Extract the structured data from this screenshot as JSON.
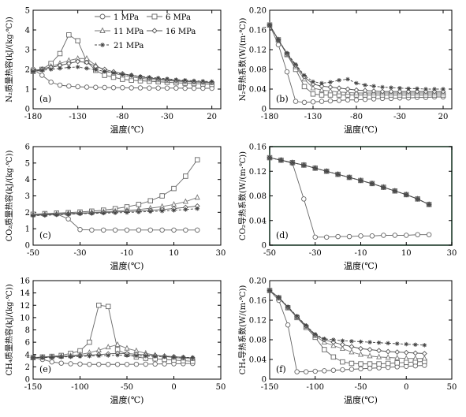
{
  "chart_data": [
    {
      "type": "line",
      "panel": "(a)",
      "ylabel": "N₂质量热容(kJ/(kg·℃))",
      "xlabel": "温度(℃)",
      "xlim": [
        -180,
        30
      ],
      "ylim": [
        0,
        5
      ],
      "xticks": [
        "-180",
        "-130",
        "-80",
        "-30",
        "20"
      ],
      "yticks": [
        "0",
        "1",
        "2",
        "3",
        "4",
        "5"
      ],
      "legend_position": "top",
      "legend_entries": [
        "1 MPa",
        "6 MPa",
        "11 MPa",
        "16 MPa",
        "21 MPa"
      ],
      "x": [
        -180,
        -170,
        -160,
        -150,
        -140,
        -130,
        -120,
        -110,
        -100,
        -90,
        -80,
        -70,
        -60,
        -50,
        -40,
        -30,
        -20,
        -10,
        0,
        10,
        20
      ],
      "series": [
        {
          "name": "1 MPa",
          "marker": "circle",
          "values": [
            2.0,
            1.7,
            1.35,
            1.2,
            1.15,
            1.12,
            1.1,
            1.09,
            1.08,
            1.07,
            1.07,
            1.06,
            1.06,
            1.05,
            1.05,
            1.05,
            1.05,
            1.04,
            1.04,
            1.04,
            1.04
          ]
        },
        {
          "name": "6 MPa",
          "marker": "square",
          "values": [
            1.9,
            2.0,
            2.3,
            2.8,
            3.75,
            3.45,
            2.4,
            1.95,
            1.7,
            1.6,
            1.5,
            1.45,
            1.42,
            1.4,
            1.37,
            1.35,
            1.32,
            1.3,
            1.28,
            1.26,
            1.24
          ]
        },
        {
          "name": "11 MPa",
          "marker": "triangle",
          "values": [
            1.9,
            2.0,
            2.15,
            2.3,
            2.45,
            2.55,
            2.55,
            2.2,
            1.95,
            1.8,
            1.7,
            1.62,
            1.55,
            1.5,
            1.46,
            1.43,
            1.4,
            1.38,
            1.36,
            1.34,
            1.32
          ]
        },
        {
          "name": "16 MPa",
          "marker": "diamond",
          "values": [
            1.95,
            2.0,
            2.1,
            2.2,
            2.3,
            2.4,
            2.35,
            2.15,
            2.0,
            1.88,
            1.78,
            1.7,
            1.62,
            1.56,
            1.52,
            1.48,
            1.44,
            1.41,
            1.38,
            1.36,
            1.34
          ]
        },
        {
          "name": "21 MPa",
          "marker": "star",
          "values": [
            1.9,
            1.95,
            2.0,
            2.05,
            2.1,
            2.12,
            2.05,
            1.98,
            1.9,
            1.82,
            1.75,
            1.7,
            1.64,
            1.6,
            1.56,
            1.52,
            1.48,
            1.45,
            1.42,
            1.4,
            1.38
          ]
        }
      ]
    },
    {
      "type": "line",
      "panel": "(b)",
      "ylabel": "N₂导热系数(W/(m·℃))",
      "xlabel": "温度(℃)",
      "xlim": [
        -180,
        30
      ],
      "ylim": [
        0,
        0.2
      ],
      "xticks": [
        "-180",
        "-130",
        "-80",
        "-30",
        "20"
      ],
      "yticks": [
        "0",
        "0.04",
        "0.08",
        "0.12",
        "0.16",
        "0.20"
      ],
      "x": [
        -180,
        -170,
        -160,
        -150,
        -140,
        -130,
        -120,
        -110,
        -100,
        -90,
        -80,
        -70,
        -60,
        -50,
        -40,
        -30,
        -20,
        -10,
        0,
        10,
        20
      ],
      "series": [
        {
          "name": "1 MPa",
          "marker": "circle",
          "values": [
            0.17,
            0.13,
            0.075,
            0.015,
            0.013,
            0.014,
            0.015,
            0.016,
            0.017,
            0.018,
            0.018,
            0.019,
            0.02,
            0.021,
            0.021,
            0.022,
            0.022,
            0.023,
            0.023,
            0.024,
            0.024
          ]
        },
        {
          "name": "6 MPa",
          "marker": "square",
          "values": [
            0.17,
            0.14,
            0.11,
            0.08,
            0.045,
            0.03,
            0.028,
            0.028,
            0.028,
            0.028,
            0.028,
            0.028,
            0.028,
            0.028,
            0.028,
            0.028,
            0.028,
            0.028,
            0.028,
            0.028,
            0.028
          ]
        },
        {
          "name": "11 MPa",
          "marker": "triangle",
          "values": [
            0.17,
            0.14,
            0.11,
            0.085,
            0.06,
            0.042,
            0.038,
            0.036,
            0.034,
            0.033,
            0.032,
            0.032,
            0.032,
            0.032,
            0.032,
            0.032,
            0.032,
            0.032,
            0.032,
            0.032,
            0.032
          ]
        },
        {
          "name": "16 MPa",
          "marker": "diamond",
          "values": [
            0.17,
            0.14,
            0.112,
            0.088,
            0.065,
            0.05,
            0.046,
            0.044,
            0.042,
            0.04,
            0.038,
            0.037,
            0.036,
            0.035,
            0.035,
            0.035,
            0.035,
            0.035,
            0.035,
            0.035,
            0.035
          ]
        },
        {
          "name": "21 MPa",
          "marker": "star",
          "values": [
            0.17,
            0.14,
            0.113,
            0.09,
            0.068,
            0.055,
            0.052,
            0.054,
            0.058,
            0.06,
            0.052,
            0.048,
            0.046,
            0.044,
            0.043,
            0.042,
            0.041,
            0.041,
            0.04,
            0.04,
            0.04
          ]
        }
      ]
    },
    {
      "type": "line",
      "panel": "(c)",
      "ylabel": "CO₂质量热容(kJ/(kg·℃))",
      "xlabel": "温度(℃)",
      "xlim": [
        -50,
        30
      ],
      "ylim": [
        0,
        6
      ],
      "xticks": [
        "-50",
        "-30",
        "-10",
        "10",
        "30"
      ],
      "yticks": [
        "0",
        "1",
        "2",
        "3",
        "4",
        "5",
        "6"
      ],
      "x": [
        -50,
        -45,
        -40,
        -35,
        -30,
        -25,
        -20,
        -15,
        -10,
        -5,
        0,
        5,
        10,
        15,
        20
      ],
      "series": [
        {
          "name": "1 MPa",
          "marker": "circle",
          "values": [
            1.85,
            1.88,
            1.9,
            1.6,
            0.95,
            0.92,
            0.92,
            0.92,
            0.92,
            0.92,
            0.92,
            0.92,
            0.92,
            0.92,
            0.92
          ]
        },
        {
          "name": "6 MPa",
          "marker": "square",
          "values": [
            1.88,
            1.92,
            1.95,
            1.98,
            2.02,
            2.07,
            2.13,
            2.22,
            2.33,
            2.48,
            2.7,
            3.0,
            3.45,
            4.2,
            5.2
          ]
        },
        {
          "name": "11 MPa",
          "marker": "triangle",
          "values": [
            1.85,
            1.88,
            1.9,
            1.93,
            1.96,
            1.99,
            2.03,
            2.07,
            2.12,
            2.17,
            2.25,
            2.35,
            2.48,
            2.65,
            2.9
          ]
        },
        {
          "name": "16 MPa",
          "marker": "diamond",
          "values": [
            1.82,
            1.84,
            1.87,
            1.9,
            1.93,
            1.96,
            1.99,
            2.02,
            2.05,
            2.08,
            2.12,
            2.17,
            2.23,
            2.3,
            2.38
          ]
        },
        {
          "name": "21 MPa",
          "marker": "star",
          "values": [
            1.8,
            1.82,
            1.85,
            1.88,
            1.91,
            1.93,
            1.95,
            1.97,
            1.99,
            2.02,
            2.05,
            2.08,
            2.12,
            2.17,
            2.22
          ]
        }
      ]
    },
    {
      "type": "line",
      "panel": "(d)",
      "ylabel": "CO₂导热系数(W/(m·℃))",
      "xlabel": "温度(℃)",
      "xlim": [
        -50,
        30
      ],
      "ylim": [
        0,
        0.16
      ],
      "xticks": [
        "-50",
        "-30",
        "-10",
        "10",
        "30"
      ],
      "yticks": [
        "0",
        "0.04",
        "0.08",
        "0.12",
        "0.16"
      ],
      "x": [
        -50,
        -45,
        -40,
        -35,
        -30,
        -25,
        -20,
        -15,
        -10,
        -5,
        0,
        5,
        10,
        15,
        20
      ],
      "series": [
        {
          "name": "1 MPa",
          "marker": "circle",
          "values": [
            0.142,
            0.138,
            0.133,
            0.075,
            0.013,
            0.013,
            0.014,
            0.014,
            0.015,
            0.015,
            0.016,
            0.016,
            0.016,
            0.017,
            0.017
          ]
        },
        {
          "name": "6 MPa",
          "marker": "square",
          "values": [
            0.142,
            0.138,
            0.134,
            0.13,
            0.125,
            0.12,
            0.115,
            0.11,
            0.105,
            0.1,
            0.094,
            0.088,
            0.082,
            0.075,
            0.066
          ]
        },
        {
          "name": "11 MPa",
          "marker": "triangle",
          "values": [
            0.142,
            0.138,
            0.134,
            0.13,
            0.125,
            0.12,
            0.115,
            0.11,
            0.105,
            0.1,
            0.094,
            0.088,
            0.082,
            0.075,
            0.066
          ]
        },
        {
          "name": "16 MPa",
          "marker": "diamond",
          "values": [
            0.142,
            0.138,
            0.134,
            0.13,
            0.125,
            0.12,
            0.115,
            0.11,
            0.105,
            0.1,
            0.094,
            0.088,
            0.082,
            0.075,
            0.066
          ]
        },
        {
          "name": "21 MPa",
          "marker": "star",
          "values": [
            0.142,
            0.138,
            0.134,
            0.13,
            0.125,
            0.12,
            0.115,
            0.11,
            0.105,
            0.1,
            0.094,
            0.088,
            0.082,
            0.075,
            0.066
          ]
        }
      ]
    },
    {
      "type": "line",
      "panel": "(e)",
      "ylabel": "CH₄质量热容(kJ/(kg·℃))",
      "xlabel": "温度(℃)",
      "xlim": [
        -150,
        50
      ],
      "ylim": [
        0,
        16
      ],
      "xticks": [
        "-150",
        "-100",
        "-50",
        "0",
        "50"
      ],
      "yticks": [
        "0",
        "2",
        "4",
        "6",
        "8",
        "10",
        "12",
        "14",
        "16"
      ],
      "x": [
        -150,
        -140,
        -130,
        -120,
        -110,
        -100,
        -90,
        -80,
        -70,
        -60,
        -50,
        -40,
        -30,
        -20,
        -10,
        0,
        10,
        20
      ],
      "series": [
        {
          "name": "1 MPa",
          "marker": "circle",
          "values": [
            3.5,
            3.2,
            2.8,
            2.6,
            2.5,
            2.45,
            2.4,
            2.4,
            2.4,
            2.4,
            2.4,
            2.42,
            2.44,
            2.46,
            2.48,
            2.5,
            2.52,
            2.55
          ]
        },
        {
          "name": "6 MPa",
          "marker": "square",
          "values": [
            3.5,
            3.6,
            3.7,
            3.85,
            4.2,
            4.6,
            6.0,
            12.0,
            11.8,
            4.8,
            4.0,
            3.6,
            3.4,
            3.3,
            3.2,
            3.1,
            3.0,
            2.9
          ]
        },
        {
          "name": "11 MPa",
          "marker": "triangle",
          "values": [
            3.5,
            3.55,
            3.6,
            3.7,
            3.8,
            4.0,
            4.3,
            4.7,
            5.2,
            5.6,
            5.0,
            4.6,
            4.2,
            3.9,
            3.7,
            3.5,
            3.4,
            3.3
          ]
        },
        {
          "name": "16 MPa",
          "marker": "diamond",
          "values": [
            3.5,
            3.55,
            3.6,
            3.65,
            3.7,
            3.8,
            3.9,
            4.0,
            4.1,
            4.2,
            4.15,
            4.05,
            3.95,
            3.85,
            3.75,
            3.65,
            3.55,
            3.45
          ]
        },
        {
          "name": "21 MPa",
          "marker": "star",
          "values": [
            3.5,
            3.5,
            3.55,
            3.6,
            3.65,
            3.7,
            3.75,
            3.8,
            3.85,
            3.9,
            3.85,
            3.8,
            3.75,
            3.7,
            3.65,
            3.6,
            3.55,
            3.5
          ]
        }
      ]
    },
    {
      "type": "line",
      "panel": "(f)",
      "ylabel": "CH₄导热系数(W/(m·℃))",
      "xlabel": "温度(℃)",
      "xlim": [
        -150,
        50
      ],
      "ylim": [
        0,
        0.2
      ],
      "xticks": [
        "-150",
        "-100",
        "-50",
        "0",
        "50"
      ],
      "yticks": [
        "0",
        "0.04",
        "0.08",
        "0.12",
        "0.16",
        "0.20"
      ],
      "x": [
        -150,
        -140,
        -130,
        -120,
        -110,
        -100,
        -90,
        -80,
        -70,
        -60,
        -50,
        -40,
        -30,
        -20,
        -10,
        0,
        10,
        20
      ],
      "series": [
        {
          "name": "1 MPa",
          "marker": "circle",
          "values": [
            0.18,
            0.16,
            0.11,
            0.015,
            0.015,
            0.016,
            0.017,
            0.018,
            0.019,
            0.02,
            0.021,
            0.022,
            0.023,
            0.024,
            0.025,
            0.026,
            0.027,
            0.028
          ]
        },
        {
          "name": "6 MPa",
          "marker": "square",
          "values": [
            0.18,
            0.165,
            0.145,
            0.125,
            0.105,
            0.085,
            0.06,
            0.045,
            0.035,
            0.032,
            0.031,
            0.031,
            0.031,
            0.032,
            0.033,
            0.034,
            0.035,
            0.036
          ]
        },
        {
          "name": "11 MPa",
          "marker": "triangle",
          "values": [
            0.18,
            0.165,
            0.145,
            0.126,
            0.107,
            0.088,
            0.075,
            0.068,
            0.062,
            0.055,
            0.05,
            0.047,
            0.045,
            0.044,
            0.043,
            0.042,
            0.042,
            0.042
          ]
        },
        {
          "name": "16 MPa",
          "marker": "diamond",
          "values": [
            0.18,
            0.166,
            0.146,
            0.127,
            0.108,
            0.09,
            0.08,
            0.075,
            0.07,
            0.066,
            0.062,
            0.06,
            0.058,
            0.056,
            0.055,
            0.054,
            0.053,
            0.052
          ]
        },
        {
          "name": "21 MPa",
          "marker": "star",
          "values": [
            0.18,
            0.166,
            0.147,
            0.128,
            0.109,
            0.091,
            0.082,
            0.08,
            0.078,
            0.077,
            0.076,
            0.075,
            0.074,
            0.073,
            0.072,
            0.071,
            0.07,
            0.069
          ]
        }
      ]
    }
  ]
}
